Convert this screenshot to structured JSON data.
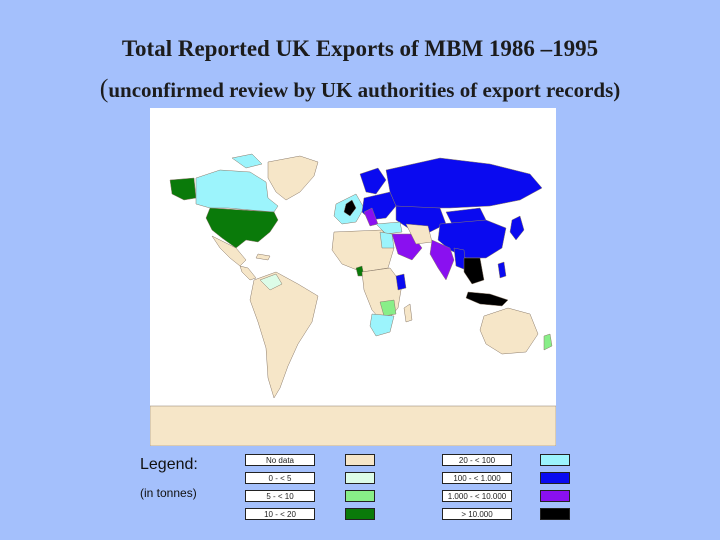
{
  "title_line1": "Total Reported UK Exports of MBM 1986 –1995",
  "title_line2_open": "(",
  "title_line2_rest": "unconfirmed review by UK authorities of export records)",
  "legend": {
    "title": "Legend:",
    "unit": "(in tonnes)",
    "classes": [
      {
        "label": "No data",
        "color": "#f6e6c8"
      },
      {
        "label": "0 - < 5",
        "color": "#dcfce8"
      },
      {
        "label": "5 - < 10",
        "color": "#88ee88"
      },
      {
        "label": "10 - < 20",
        "color": "#0a7a0a"
      },
      {
        "label": "20 - < 100",
        "color": "#9cf4fc"
      },
      {
        "label": "100 - < 1.000",
        "color": "#0a0af0"
      },
      {
        "label": "1.000 - < 10.000",
        "color": "#8a10f0"
      },
      {
        "label": "> 10.000",
        "color": "#000000"
      }
    ]
  },
  "map_colors": {
    "background": "#ffffff",
    "border": "#8a7a6a"
  }
}
